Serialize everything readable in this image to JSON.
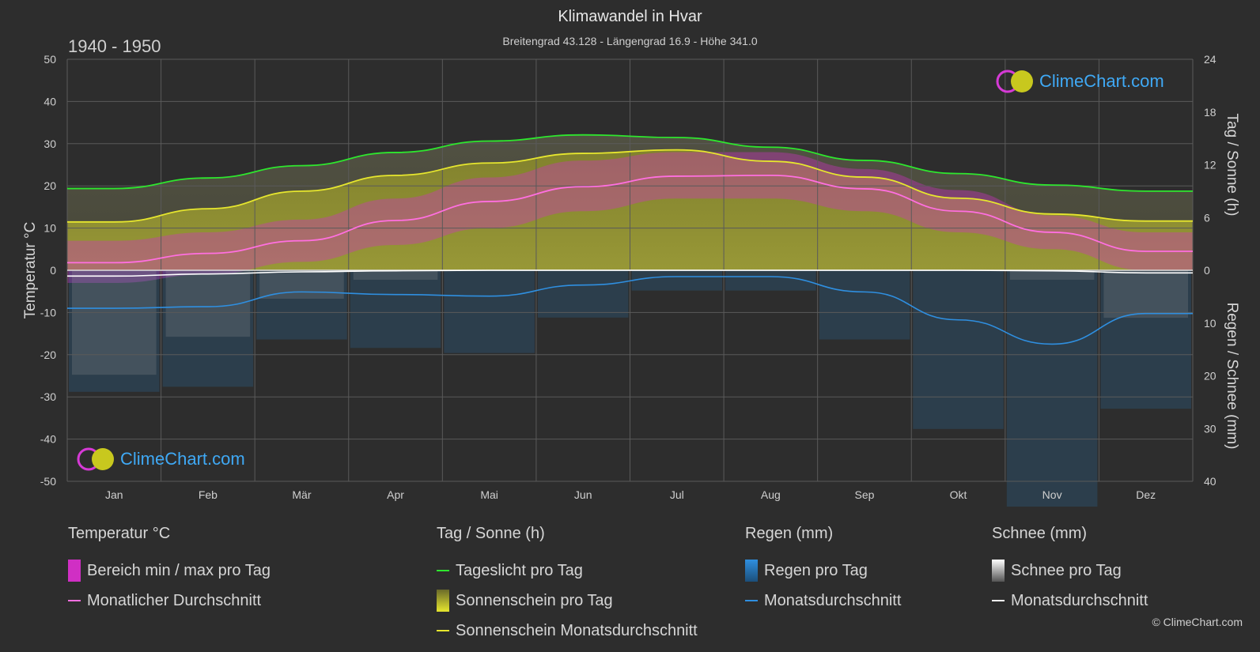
{
  "header": {
    "title": "Klimawandel in Hvar",
    "subtitle": "Breitengrad 43.128 - Längengrad 16.9 - Höhe 341.0",
    "period": "1940 - 1950"
  },
  "branding": {
    "logo_text": "ClimeChart.com",
    "copyright": "© ClimeChart.com"
  },
  "colors": {
    "background": "#2d2d2d",
    "daylight": "#2ee62e",
    "sunshine_avg": "#e6e62e",
    "sunshine_bar": "#9a9a2a",
    "temp_range": "#d02fc4",
    "temp_avg": "#ff6fe0",
    "rain": "#2f8fe0",
    "snow": "#ffffff"
  },
  "legend": {
    "temperature": {
      "title": "Temperatur °C",
      "items": [
        "Bereich min / max pro Tag",
        "Monatlicher Durchschnitt"
      ]
    },
    "sun": {
      "title": "Tag / Sonne (h)",
      "items": [
        "Tageslicht pro Tag",
        "Sonnenschein pro Tag",
        "Sonnenschein Monatsdurchschnitt"
      ]
    },
    "rain": {
      "title": "Regen (mm)",
      "items": [
        "Regen pro Tag",
        "Monatsdurchschnitt"
      ]
    },
    "snow": {
      "title": "Schnee (mm)",
      "items": [
        "Schnee pro Tag",
        "Monatsdurchschnitt"
      ]
    }
  },
  "chart_data": {
    "type": "line",
    "categories": [
      "Jan",
      "Feb",
      "Mär",
      "Apr",
      "Mai",
      "Jun",
      "Jul",
      "Aug",
      "Sep",
      "Okt",
      "Nov",
      "Dez"
    ],
    "y_left": {
      "label": "Temperatur °C",
      "range": [
        -50,
        50
      ],
      "ticks": [
        50,
        40,
        30,
        20,
        10,
        0,
        -10,
        -20,
        -30,
        -40,
        -50
      ]
    },
    "y_right_top": {
      "label": "Tag / Sonne (h)",
      "range": [
        0,
        24
      ],
      "ticks": [
        24,
        18,
        12,
        6,
        0
      ]
    },
    "y_right_bottom": {
      "label": "Regen / Schnee (mm)",
      "range": [
        0,
        40
      ],
      "ticks": [
        0,
        10,
        20,
        30,
        40
      ]
    },
    "grid": true,
    "series": [
      {
        "name": "Tageslicht pro Tag",
        "unit": "h",
        "values": [
          9.3,
          10.5,
          11.9,
          13.4,
          14.7,
          15.4,
          15.1,
          14.0,
          12.5,
          11.0,
          9.7,
          9.0
        ]
      },
      {
        "name": "Sonnenschein Monatsdurchschnitt",
        "unit": "h",
        "values": [
          5.5,
          7.0,
          9.0,
          10.8,
          12.2,
          13.3,
          13.7,
          12.4,
          10.6,
          8.2,
          6.4,
          5.6
        ]
      },
      {
        "name": "Monatlicher Durchschnitt",
        "unit": "°C",
        "values": [
          1.8,
          4.0,
          7.0,
          11.8,
          16.3,
          19.8,
          22.3,
          22.5,
          19.3,
          14.0,
          9.0,
          4.5
        ]
      },
      {
        "name": "Regen Monatsdurchschnitt",
        "unit": "mm",
        "values": [
          7.2,
          6.9,
          4.1,
          4.6,
          4.9,
          2.8,
          1.2,
          1.2,
          4.1,
          9.4,
          14.0,
          8.2
        ]
      },
      {
        "name": "Schnee Monatsdurchschnitt",
        "unit": "mm",
        "values": [
          1.1,
          0.7,
          0.3,
          0.1,
          0.0,
          0.0,
          0.0,
          0.0,
          0.0,
          0.0,
          0.1,
          0.5
        ]
      }
    ],
    "temp_range": {
      "min": [
        -3,
        -1,
        2,
        6,
        10,
        14,
        17,
        17,
        14,
        9,
        5,
        0
      ],
      "max": [
        7,
        9,
        12,
        17,
        22,
        26,
        28,
        28,
        24,
        19,
        13,
        9
      ]
    }
  }
}
